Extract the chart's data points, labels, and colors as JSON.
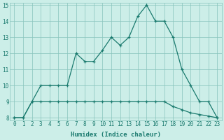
{
  "xlabel": "Humidex (Indice chaleur)",
  "line1_x": [
    0,
    1,
    2,
    3,
    4,
    5,
    6,
    7,
    8,
    9,
    10,
    11,
    12,
    13,
    14,
    15,
    16,
    17,
    18,
    19,
    20,
    21,
    22,
    23
  ],
  "line1_y": [
    8,
    8,
    9,
    10,
    10,
    10,
    10,
    12,
    11.5,
    11.5,
    12.2,
    13,
    12.5,
    13,
    14.3,
    15,
    14,
    14,
    13,
    11,
    10,
    9,
    9,
    8
  ],
  "line2_x": [
    0,
    1,
    2,
    3,
    4,
    5,
    6,
    7,
    8,
    9,
    10,
    11,
    12,
    13,
    14,
    15,
    16,
    17,
    18,
    19,
    20,
    21,
    22,
    23
  ],
  "line2_y": [
    8,
    8,
    9,
    9,
    9,
    9,
    9,
    9,
    9,
    9,
    9,
    9,
    9,
    9,
    9,
    9,
    9,
    9,
    8.7,
    8.5,
    8.3,
    8.2,
    8.1,
    8
  ],
  "color": "#1a7a6e",
  "bg_color": "#cceee8",
  "grid_color": "#88c4bc",
  "ylim": [
    8,
    15
  ],
  "xlim": [
    0,
    23
  ],
  "yticks": [
    8,
    9,
    10,
    11,
    12,
    13,
    14,
    15
  ],
  "xticks": [
    0,
    1,
    2,
    3,
    4,
    5,
    6,
    7,
    8,
    9,
    10,
    11,
    12,
    13,
    14,
    15,
    16,
    17,
    18,
    19,
    20,
    21,
    22,
    23
  ]
}
